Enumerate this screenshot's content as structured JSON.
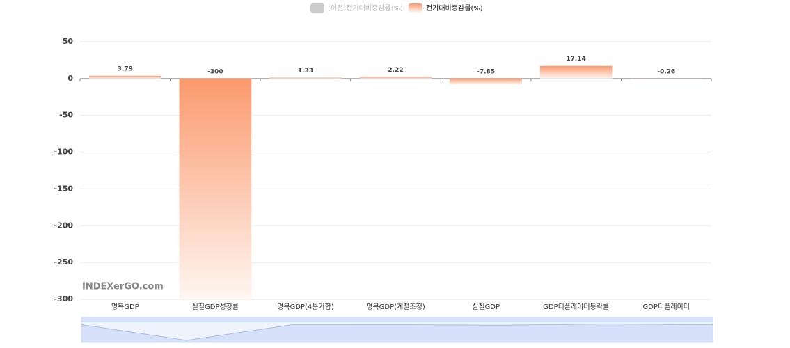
{
  "chart_data": {
    "type": "bar",
    "categories": [
      "명목GDP",
      "실질GDP성장률",
      "명목GDP(4분기합)",
      "명목GDP(계절조정)",
      "실질GDP",
      "GDP디플레이터등락률",
      "GDP디플레이터"
    ],
    "series": [
      {
        "name": "(이전)전기대비증감률(%)",
        "color": "#cccccc",
        "hidden": true
      },
      {
        "name": "전기대비증감률(%)",
        "color": "#fb9a6e",
        "values": [
          3.79,
          -300,
          1.33,
          2.22,
          -7.85,
          17.14,
          -0.26
        ]
      }
    ],
    "ylim": [
      -300,
      50
    ],
    "yticks": [
      -300,
      -250,
      -200,
      -150,
      -100,
      -50,
      0,
      50
    ],
    "grid": true,
    "watermark": "INDEXerGO.com"
  }
}
